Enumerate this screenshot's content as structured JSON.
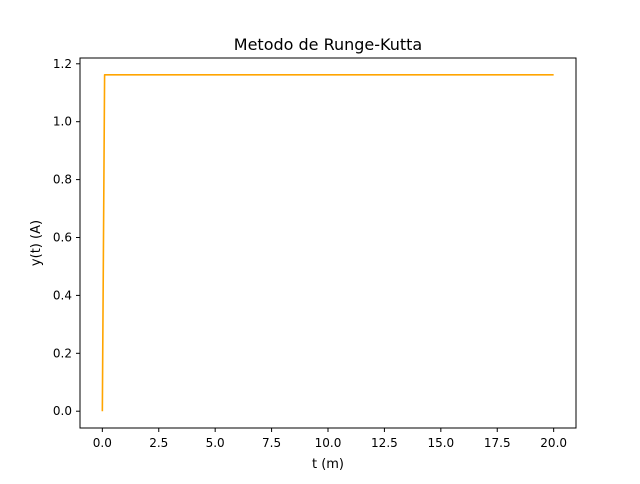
{
  "chart_data": {
    "type": "line",
    "title": "Metodo de Runge-Kutta",
    "xlabel": "t (m)",
    "ylabel": "y(t) (A)",
    "xlim": [
      -0.99,
      20.99
    ],
    "ylim": [
      -0.058,
      1.22
    ],
    "xticks": [
      0.0,
      2.5,
      5.0,
      7.5,
      10.0,
      12.5,
      15.0,
      17.5,
      20.0
    ],
    "xtick_labels": [
      "0.0",
      "2.5",
      "5.0",
      "7.5",
      "10.0",
      "12.5",
      "15.0",
      "17.5",
      "20.0"
    ],
    "yticks": [
      0.0,
      0.2,
      0.4,
      0.6,
      0.8,
      1.0,
      1.2
    ],
    "ytick_labels": [
      "0.0",
      "0.2",
      "0.4",
      "0.6",
      "0.8",
      "1.0",
      "1.2"
    ],
    "grid": false,
    "series": [
      {
        "color": "#ffa500",
        "x": [
          0.0,
          0.1,
          0.2,
          1.0,
          5.0,
          10.0,
          15.0,
          20.0
        ],
        "y": [
          0.0,
          1.162,
          1.162,
          1.162,
          1.162,
          1.162,
          1.162,
          1.162
        ]
      }
    ]
  }
}
